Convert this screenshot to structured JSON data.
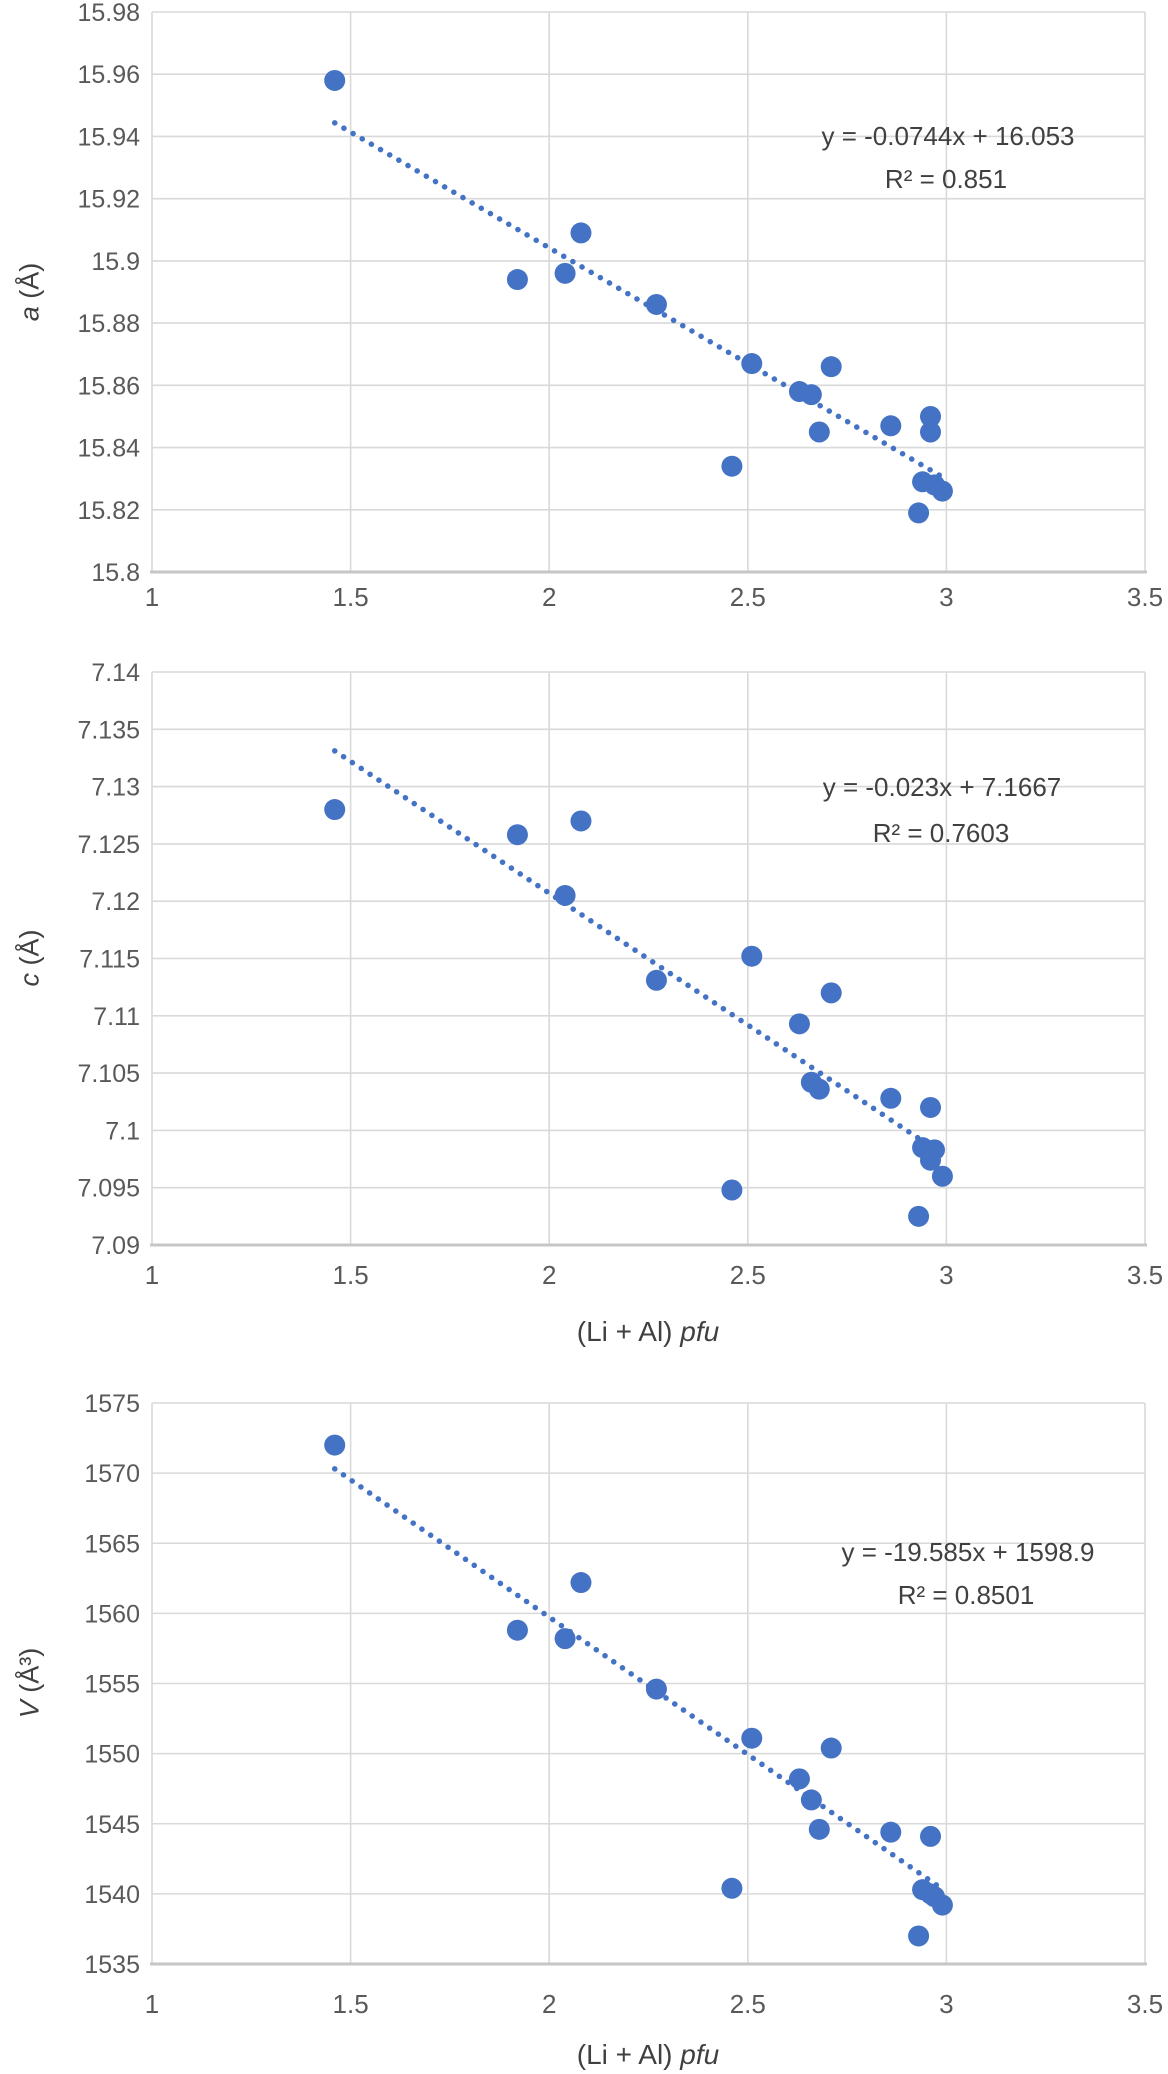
{
  "styles": {
    "background": "#ffffff",
    "dot_color": "#4472C4",
    "trend_color": "#4472C4",
    "grid_color": "#D9D9D9",
    "axis_color": "#C6C6C6",
    "tick_color": "#595959",
    "text_color": "#404040"
  },
  "xaxis": {
    "min": 1,
    "max": 3.5,
    "values": [
      1,
      1.5,
      2,
      2.5,
      3,
      3.5
    ],
    "ticks": [
      "1",
      "1.5",
      "2",
      "2.5",
      "3",
      "3.5"
    ]
  },
  "xlabel": {
    "prefix": "(Li + Al) ",
    "italic": "pfu"
  },
  "chart_data": [
    {
      "id": "a",
      "type": "scatter",
      "ytitle_sym": "a",
      "ytitle_rest": " (Å)",
      "xlabel_shown": false,
      "ymin": 15.8,
      "ymax": 15.98,
      "yticks": [
        {
          "v": 15.98,
          "label": "15.98"
        },
        {
          "v": 15.96,
          "label": "15.96"
        },
        {
          "v": 15.94,
          "label": "15.94"
        },
        {
          "v": 15.92,
          "label": "15.92"
        },
        {
          "v": 15.9,
          "label": "15.9"
        },
        {
          "v": 15.88,
          "label": "15.88"
        },
        {
          "v": 15.86,
          "label": "15.86"
        },
        {
          "v": 15.84,
          "label": "15.84"
        },
        {
          "v": 15.82,
          "label": "15.82"
        },
        {
          "v": 15.8,
          "label": "15.8"
        }
      ],
      "equation": "y = -0.0744x + 16.053",
      "r2": "R² = 0.851",
      "trend": {
        "slope": -0.0744,
        "intercept": 16.053,
        "x1": 1.46,
        "x2": 2.99
      },
      "points": [
        [
          1.46,
          15.958
        ],
        [
          1.92,
          15.894
        ],
        [
          2.04,
          15.896
        ],
        [
          2.08,
          15.909
        ],
        [
          2.27,
          15.886
        ],
        [
          2.46,
          15.834
        ],
        [
          2.51,
          15.867
        ],
        [
          2.63,
          15.858
        ],
        [
          2.66,
          15.857
        ],
        [
          2.68,
          15.845
        ],
        [
          2.71,
          15.866
        ],
        [
          2.86,
          15.847
        ],
        [
          2.93,
          15.819
        ],
        [
          2.94,
          15.829
        ],
        [
          2.96,
          15.85
        ],
        [
          2.96,
          15.845
        ],
        [
          2.97,
          15.828
        ],
        [
          2.99,
          15.826
        ]
      ]
    },
    {
      "id": "c",
      "type": "scatter",
      "ytitle_sym": "c",
      "ytitle_rest": " (Å)",
      "xlabel_shown": true,
      "ymin": 7.09,
      "ymax": 7.14,
      "yticks": [
        {
          "v": 7.14,
          "label": "7.14"
        },
        {
          "v": 7.135,
          "label": "7.135"
        },
        {
          "v": 7.13,
          "label": "7.13"
        },
        {
          "v": 7.125,
          "label": "7.125"
        },
        {
          "v": 7.12,
          "label": "7.12"
        },
        {
          "v": 7.115,
          "label": "7.115"
        },
        {
          "v": 7.11,
          "label": "7.11"
        },
        {
          "v": 7.105,
          "label": "7.105"
        },
        {
          "v": 7.1,
          "label": "7.1"
        },
        {
          "v": 7.095,
          "label": "7.095"
        },
        {
          "v": 7.09,
          "label": "7.09"
        }
      ],
      "equation": "y = -0.023x + 7.1667",
      "r2": "R² = 0.7603",
      "trend": {
        "slope": -0.023,
        "intercept": 7.1667,
        "x1": 1.46,
        "x2": 2.99
      },
      "points": [
        [
          1.46,
          7.128
        ],
        [
          1.92,
          7.1258
        ],
        [
          2.04,
          7.1205
        ],
        [
          2.08,
          7.127
        ],
        [
          2.27,
          7.1131
        ],
        [
          2.46,
          7.0948
        ],
        [
          2.51,
          7.1152
        ],
        [
          2.63,
          7.1093
        ],
        [
          2.66,
          7.1042
        ],
        [
          2.68,
          7.1036
        ],
        [
          2.71,
          7.112
        ],
        [
          2.86,
          7.1028
        ],
        [
          2.93,
          7.0925
        ],
        [
          2.94,
          7.0985
        ],
        [
          2.96,
          7.0974
        ],
        [
          2.96,
          7.102
        ],
        [
          2.97,
          7.0983
        ],
        [
          2.99,
          7.096
        ]
      ]
    },
    {
      "id": "V",
      "type": "scatter",
      "ytitle_sym": "V",
      "ytitle_rest": " (Å³)",
      "xlabel_shown": true,
      "ymin": 1535,
      "ymax": 1575,
      "yticks": [
        {
          "v": 1575,
          "label": "1575"
        },
        {
          "v": 1570,
          "label": "1570"
        },
        {
          "v": 1565,
          "label": "1565"
        },
        {
          "v": 1560,
          "label": "1560"
        },
        {
          "v": 1555,
          "label": "1555"
        },
        {
          "v": 1550,
          "label": "1550"
        },
        {
          "v": 1545,
          "label": "1545"
        },
        {
          "v": 1540,
          "label": "1540"
        },
        {
          "v": 1535,
          "label": "1535"
        }
      ],
      "equation": "y = -19.585x + 1598.9",
      "r2": "R² = 0.8501",
      "trend": {
        "slope": -19.585,
        "intercept": 1598.9,
        "x1": 1.46,
        "x2": 2.99
      },
      "points": [
        [
          1.46,
          1572.0
        ],
        [
          1.92,
          1558.8
        ],
        [
          2.04,
          1558.2
        ],
        [
          2.08,
          1562.2
        ],
        [
          2.27,
          1554.6
        ],
        [
          2.46,
          1540.4
        ],
        [
          2.51,
          1551.1
        ],
        [
          2.63,
          1548.2
        ],
        [
          2.66,
          1546.7
        ],
        [
          2.68,
          1544.6
        ],
        [
          2.71,
          1550.4
        ],
        [
          2.86,
          1544.4
        ],
        [
          2.93,
          1537.0
        ],
        [
          2.94,
          1540.3
        ],
        [
          2.96,
          1540.0
        ],
        [
          2.96,
          1544.1
        ],
        [
          2.97,
          1539.8
        ],
        [
          2.99,
          1539.2
        ]
      ]
    }
  ]
}
